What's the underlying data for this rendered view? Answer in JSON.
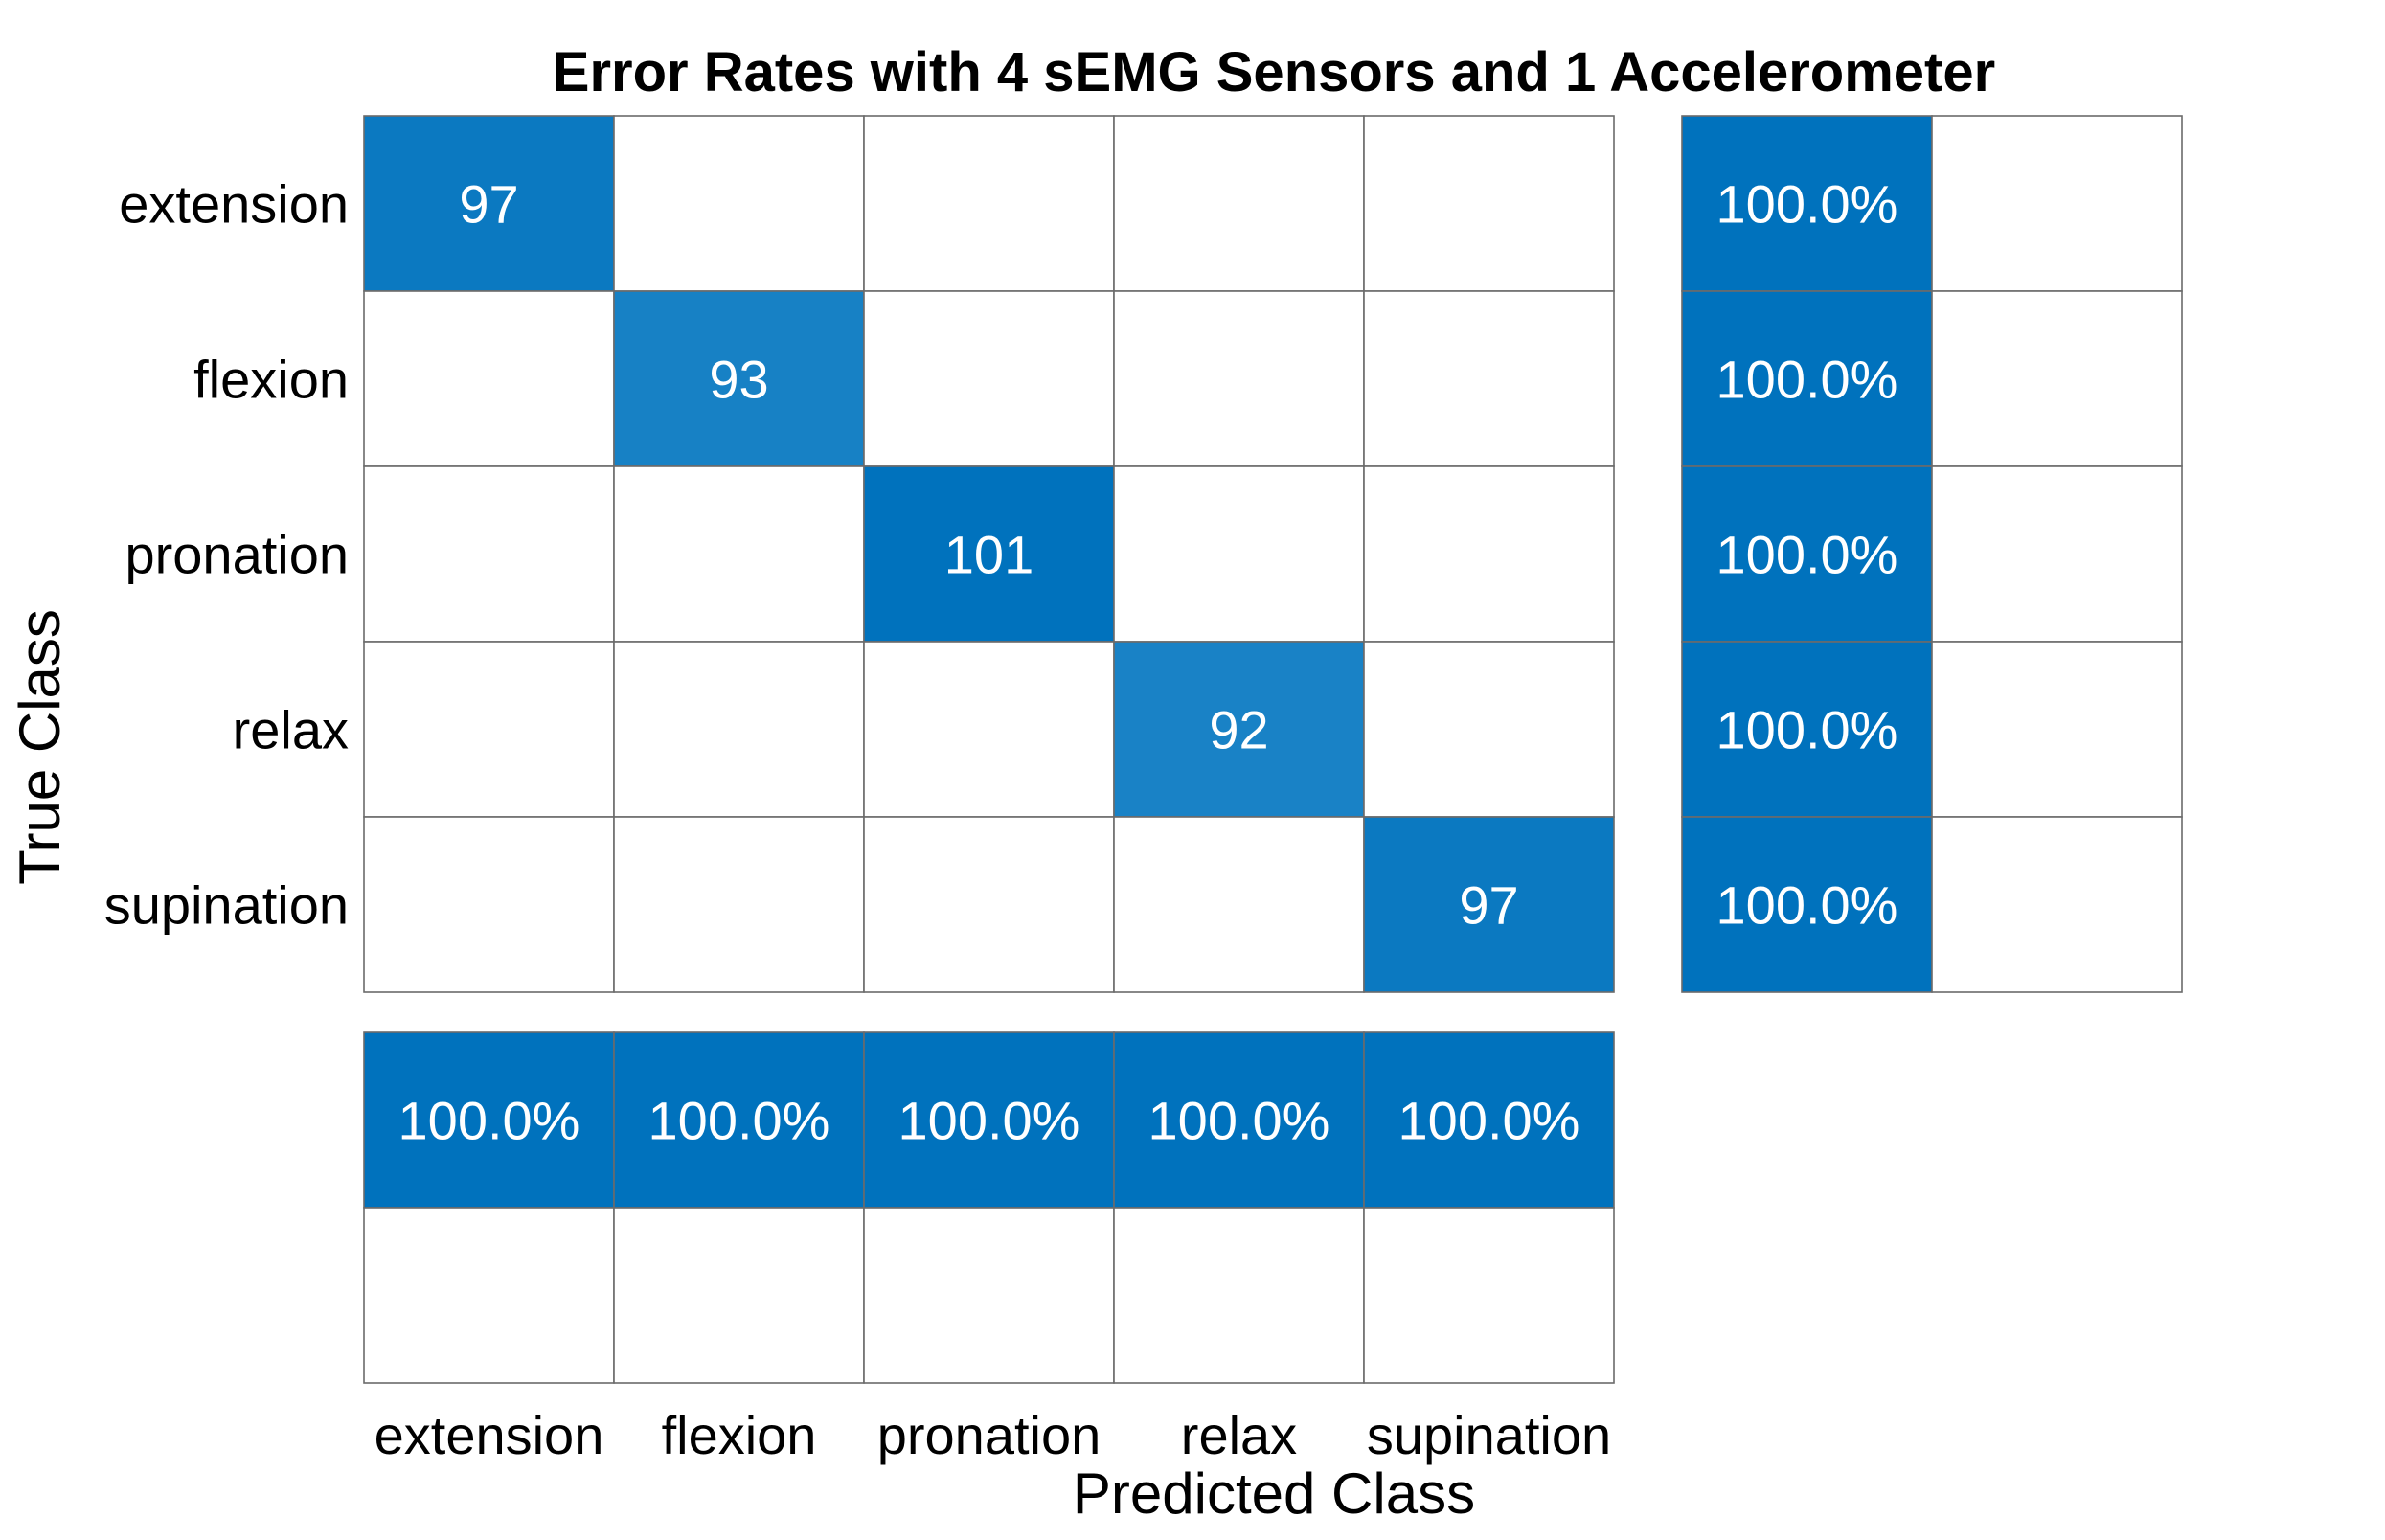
{
  "chart_data": {
    "type": "heatmap",
    "title": "Error Rates with 4 sEMG Sensors and 1 Accelerometer",
    "xlabel": "Predicted Class",
    "ylabel": "True Class",
    "classes": [
      "extension",
      "flexion",
      "pronation",
      "relax",
      "supination"
    ],
    "matrix": [
      [
        97,
        0,
        0,
        0,
        0
      ],
      [
        0,
        93,
        0,
        0,
        0
      ],
      [
        0,
        0,
        101,
        0,
        0
      ],
      [
        0,
        0,
        0,
        92,
        0
      ],
      [
        0,
        0,
        0,
        0,
        97
      ]
    ],
    "row_summary": {
      "correct": [
        "100.0%",
        "100.0%",
        "100.0%",
        "100.0%",
        "100.0%"
      ],
      "incorrect": [
        "",
        "",
        "",
        "",
        ""
      ]
    },
    "column_summary": {
      "correct": [
        "100.0%",
        "100.0%",
        "100.0%",
        "100.0%",
        "100.0%"
      ],
      "incorrect": [
        "",
        "",
        "",
        "",
        ""
      ]
    },
    "colors": {
      "cell_high": "#0072BD",
      "cell_low": "#1F86C8",
      "summary": "#0072BD",
      "empty": "#FFFFFF"
    }
  }
}
